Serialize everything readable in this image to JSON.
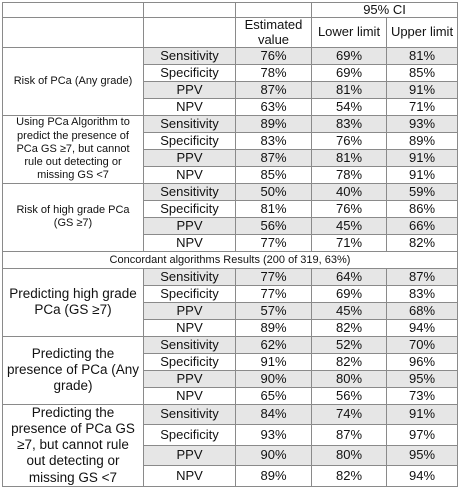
{
  "header": {
    "ci_label": "95% CI",
    "col_est": "Estimated value",
    "col_lower": "Lower limit",
    "col_upper": "Upper limit"
  },
  "section_title": "Concordant algorithms Results (200 of 319, 63%)",
  "groups": [
    {
      "label": "Risk of PCa (Any grade)",
      "rows": [
        {
          "metric": "Sensitivity",
          "est": "76%",
          "lower": "69%",
          "upper": "81%"
        },
        {
          "metric": "Specificity",
          "est": "78%",
          "lower": "69%",
          "upper": "85%"
        },
        {
          "metric": "PPV",
          "est": "87%",
          "lower": "81%",
          "upper": "91%"
        },
        {
          "metric": "NPV",
          "est": "63%",
          "lower": "54%",
          "upper": "71%"
        }
      ]
    },
    {
      "label": "Using PCa Algorithm to predict the presence of PCa GS ≥7, but cannot rule out detecting or missing GS <7",
      "rows": [
        {
          "metric": "Sensitivity",
          "est": "89%",
          "lower": "83%",
          "upper": "93%"
        },
        {
          "metric": "Specificity",
          "est": "83%",
          "lower": "76%",
          "upper": "89%"
        },
        {
          "metric": "PPV",
          "est": "87%",
          "lower": "81%",
          "upper": "91%"
        },
        {
          "metric": "NPV",
          "est": "85%",
          "lower": "78%",
          "upper": "91%"
        }
      ]
    },
    {
      "label": "Risk of high grade PCa (GS ≥7)",
      "rows": [
        {
          "metric": "Sensitivity",
          "est": "50%",
          "lower": "40%",
          "upper": "59%"
        },
        {
          "metric": "Specificity",
          "est": "81%",
          "lower": "76%",
          "upper": "86%"
        },
        {
          "metric": "PPV",
          "est": "56%",
          "lower": "45%",
          "upper": "66%"
        },
        {
          "metric": "NPV",
          "est": "77%",
          "lower": "71%",
          "upper": "82%"
        }
      ]
    },
    {
      "label": "Predicting high grade PCa (GS ≥7)",
      "rows": [
        {
          "metric": "Sensitivity",
          "est": "77%",
          "lower": "64%",
          "upper": "87%"
        },
        {
          "metric": "Specificity",
          "est": "77%",
          "lower": "69%",
          "upper": "83%"
        },
        {
          "metric": "PPV",
          "est": "57%",
          "lower": "45%",
          "upper": "68%"
        },
        {
          "metric": "NPV",
          "est": "89%",
          "lower": "82%",
          "upper": "94%"
        }
      ]
    },
    {
      "label": "Predicting the presence of PCa (Any grade)",
      "rows": [
        {
          "metric": "Sensitivity",
          "est": "62%",
          "lower": "52%",
          "upper": "70%"
        },
        {
          "metric": "Specificity",
          "est": "91%",
          "lower": "82%",
          "upper": "96%"
        },
        {
          "metric": "PPV",
          "est": "90%",
          "lower": "80%",
          "upper": "95%"
        },
        {
          "metric": "NPV",
          "est": "65%",
          "lower": "56%",
          "upper": "73%"
        }
      ]
    },
    {
      "label": "Predicting the presence of PCa GS ≥7, but cannot rule out detecting or missing GS <7",
      "rows": [
        {
          "metric": "Sensitivity",
          "est": "84%",
          "lower": "74%",
          "upper": "91%"
        },
        {
          "metric": "Specificity",
          "est": "93%",
          "lower": "87%",
          "upper": "97%"
        },
        {
          "metric": "PPV",
          "est": "90%",
          "lower": "80%",
          "upper": "95%"
        },
        {
          "metric": "NPV",
          "est": "89%",
          "lower": "82%",
          "upper": "94%"
        }
      ]
    }
  ]
}
